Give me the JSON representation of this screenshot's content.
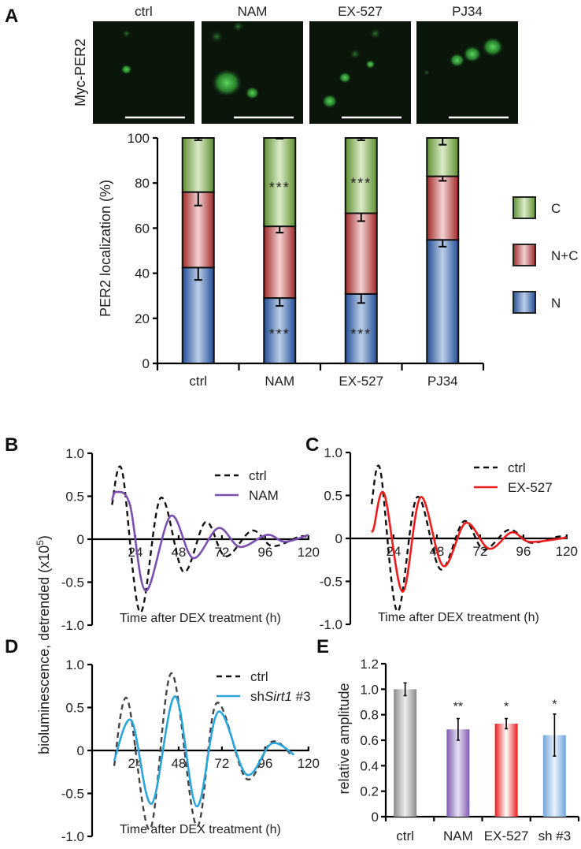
{
  "panel_labels": {
    "A": "A",
    "B": "B",
    "C": "C",
    "D": "D",
    "E": "E"
  },
  "panel_a_images": {
    "row_label": "Myc-PER2",
    "titles": [
      "ctrl",
      "NAM",
      "EX-527",
      "PJ34"
    ]
  },
  "shared_ylabel": "bioluminescence, detrended (x10",
  "shared_ylabel_sup": "5",
  "shared_ylabel_end": ")",
  "colors": {
    "C": "#7aa74a",
    "N+C": "#b33a3a",
    "N": "#2f5aa0",
    "ctrl_line": "#111111",
    "NAM": "#7b4fb0",
    "EX-527": "#ee1c1c",
    "shSirt1": "#2aa6dc"
  },
  "chart_data": [
    {
      "id": "A",
      "type": "bar",
      "stacked": true,
      "ylabel": "PER2 localization (%)",
      "ylim": [
        0,
        100
      ],
      "yticks": [
        "0",
        "20",
        "40",
        "60",
        "80",
        "100"
      ],
      "categories": [
        "ctrl",
        "NAM",
        "EX-527",
        "PJ34"
      ],
      "series": [
        {
          "name": "N",
          "values": [
            42.5,
            29.0,
            30.8,
            54.8
          ],
          "errors": [
            5.5,
            3.5,
            4.0,
            3.0
          ]
        },
        {
          "name": "N+C",
          "values": [
            33.5,
            31.8,
            35.8,
            28.2
          ],
          "errors": [
            6.0,
            2.8,
            3.5,
            2.0
          ]
        },
        {
          "name": "C",
          "values": [
            24.0,
            39.2,
            33.4,
            17.0
          ],
          "errors": [
            1.0,
            0.3,
            1.0,
            3.0
          ]
        }
      ],
      "legend": [
        "C",
        "N+C",
        "N"
      ],
      "legend_position": "right",
      "annotations": [
        {
          "category": "NAM",
          "y": 79,
          "text": "***"
        },
        {
          "category": "NAM",
          "y": 14,
          "text": "***"
        },
        {
          "category": "EX-527",
          "y": 81,
          "text": "***"
        },
        {
          "category": "EX-527",
          "y": 14,
          "text": "***"
        }
      ]
    },
    {
      "id": "B",
      "type": "line",
      "xlabel": "Time after DEX treatment (h)",
      "xlim": [
        0,
        120
      ],
      "ylim": [
        -1.0,
        1.0
      ],
      "xticks": [
        "24",
        "48",
        "72",
        "96",
        "120"
      ],
      "yticks": [
        "-1.0",
        "-0.5",
        "0",
        "0.5",
        "1.0"
      ],
      "legend_position": "top-right",
      "series": [
        {
          "name": "ctrl",
          "style": "dashed",
          "x": [
            11,
            16.6,
            26.6,
            38,
            50.7,
            63,
            74,
            88.6,
            100,
            115,
            120
          ],
          "y": [
            0.4,
            0.8,
            -0.85,
            0.48,
            -0.38,
            0.2,
            -0.2,
            0.1,
            -0.08,
            0.03,
            0.02
          ]
        },
        {
          "name": "NAM",
          "style": "solid",
          "x": [
            11,
            13.5,
            21,
            29.7,
            43.6,
            56,
            70,
            82,
            97,
            107,
            120
          ],
          "y": [
            0.45,
            0.55,
            0.4,
            -0.6,
            0.27,
            -0.22,
            0.13,
            -0.09,
            0.05,
            -0.03,
            0.05
          ]
        }
      ]
    },
    {
      "id": "C",
      "type": "line",
      "xlabel": "Time after DEX treatment (h)",
      "xlim": [
        0,
        120
      ],
      "ylim": [
        -1.0,
        1.0
      ],
      "xticks": [
        "24",
        "48",
        "72",
        "96",
        "120"
      ],
      "yticks": [
        "-1.0",
        "-0.5",
        "0",
        "0.5",
        "1.0"
      ],
      "legend_position": "top-right",
      "series": [
        {
          "name": "ctrl",
          "style": "dashed",
          "x": [
            11.8,
            16.6,
            26,
            37,
            50,
            63,
            74,
            88,
            100,
            115,
            120
          ],
          "y": [
            0.4,
            0.8,
            -0.85,
            0.48,
            -0.36,
            0.2,
            -0.13,
            0.1,
            -0.05,
            0.02,
            0.01
          ]
        },
        {
          "name": "EX-527",
          "style": "solid",
          "x": [
            11.8,
            13,
            18.8,
            29,
            39,
            51.5,
            64,
            77,
            89.5,
            99.6,
            120
          ],
          "y": [
            0.08,
            0.12,
            0.52,
            -0.62,
            0.48,
            -0.32,
            0.18,
            -0.12,
            0.07,
            -0.04,
            0.01
          ]
        }
      ]
    },
    {
      "id": "D",
      "type": "line",
      "xlabel": "Time after DEX treatment (h)",
      "xlim": [
        0,
        120
      ],
      "ylim": [
        -1.0,
        1.0
      ],
      "xticks": [
        "24",
        "48",
        "72",
        "96",
        "120"
      ],
      "yticks": [
        "-1.0",
        "-0.5",
        "0",
        "0.5",
        "1.0"
      ],
      "legend_position": "top-right",
      "series": [
        {
          "name": "ctrl",
          "style": "dashed",
          "x": [
            12.2,
            19.5,
            32,
            44,
            58,
            69,
            85.6,
            99.5,
            111
          ],
          "y": [
            -0.18,
            0.6,
            -0.92,
            0.9,
            -0.88,
            0.55,
            -0.33,
            0.1,
            -0.06
          ]
        },
        {
          "name": "shSirt1 #3",
          "name_prefix": "sh",
          "name_italic": "Sirt1",
          "name_suffix": " #3",
          "style": "solid",
          "x": [
            12.2,
            21.8,
            33,
            46,
            58,
            70,
            85.6,
            99.5,
            112
          ],
          "y": [
            -0.12,
            0.35,
            -0.62,
            0.63,
            -0.65,
            0.45,
            -0.28,
            0.08,
            -0.05
          ]
        }
      ]
    },
    {
      "id": "E",
      "type": "bar",
      "ylabel": "relative amplitude",
      "ylim": [
        0,
        1.2
      ],
      "yticks": [
        "0",
        "0.2",
        "0.4",
        "0.6",
        "0.8",
        "1.0",
        "1.2"
      ],
      "categories": [
        "ctrl",
        "NAM",
        "EX-527",
        "sh #3"
      ],
      "values": [
        1.0,
        0.685,
        0.73,
        0.64
      ],
      "errors": [
        0.05,
        0.085,
        0.04,
        0.165
      ],
      "significance": [
        "",
        "**",
        "*",
        "*"
      ],
      "significance_y": [
        0,
        0.88,
        0.88,
        0.9
      ]
    }
  ]
}
